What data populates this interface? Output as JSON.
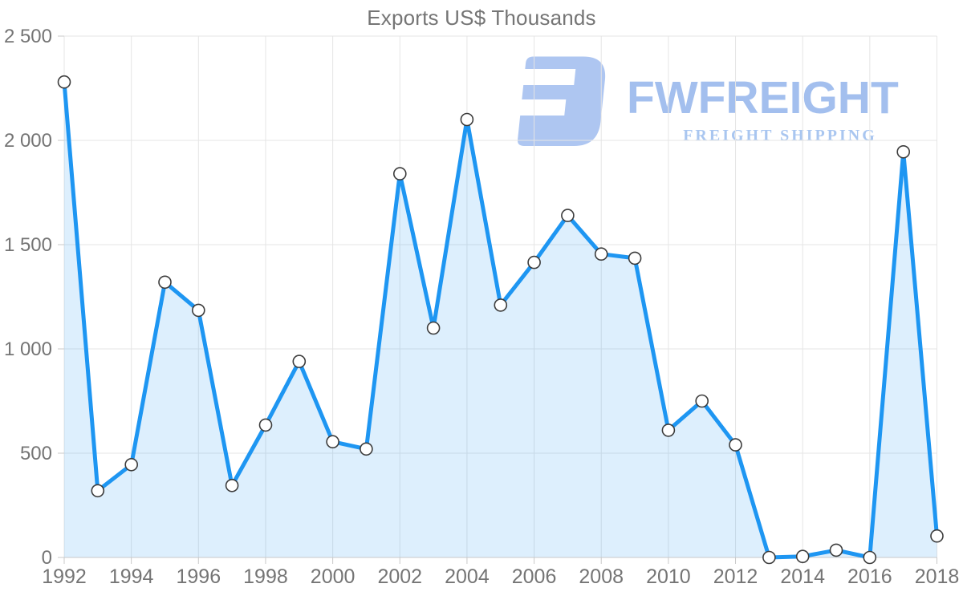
{
  "header": {
    "title": "Exports US$ Thousands"
  },
  "watermark": {
    "brand": "FWFREIGHT",
    "tagline": "FREIGHT SHIPPING",
    "brand_color": "#a3bfee",
    "tagline_color": "#a9c6f0",
    "icon_color": "#aec6f1"
  },
  "chart_data": {
    "type": "area",
    "title": "Exports US$ Thousands",
    "x": [
      1992,
      1993,
      1994,
      1995,
      1996,
      1997,
      1998,
      1999,
      2000,
      2001,
      2002,
      2003,
      2004,
      2005,
      2006,
      2007,
      2008,
      2009,
      2010,
      2011,
      2012,
      2013,
      2014,
      2015,
      2016,
      2017,
      2018
    ],
    "series": [
      {
        "name": "Exports US$ Thousands",
        "values": [
          2280,
          320,
          445,
          1320,
          1185,
          345,
          635,
          940,
          555,
          520,
          1840,
          1100,
          2100,
          1210,
          1415,
          1640,
          1455,
          1435,
          610,
          750,
          540,
          0,
          5,
          35,
          0,
          1945,
          103
        ]
      }
    ],
    "xlabel": "",
    "ylabel": "",
    "ylim": [
      0,
      2500
    ],
    "yticks": [
      0,
      500,
      1000,
      1500,
      2000,
      2500
    ],
    "ytick_labels": [
      "0",
      "500",
      "1 000",
      "1 500",
      "2 000",
      "2 500"
    ],
    "xtick_step": 2,
    "grid": true,
    "legend": "none",
    "line_color": "#1e96f2",
    "fill_color": "rgba(30,150,242,0.15)",
    "marker_fill": "#ffffff",
    "marker_stroke": "#3c3c3c",
    "marker_radius": 7.5,
    "line_width": 5,
    "grid_color": "#e5e5e5",
    "axis_line_color": "#c9c9c9",
    "text_color": "#757575"
  }
}
